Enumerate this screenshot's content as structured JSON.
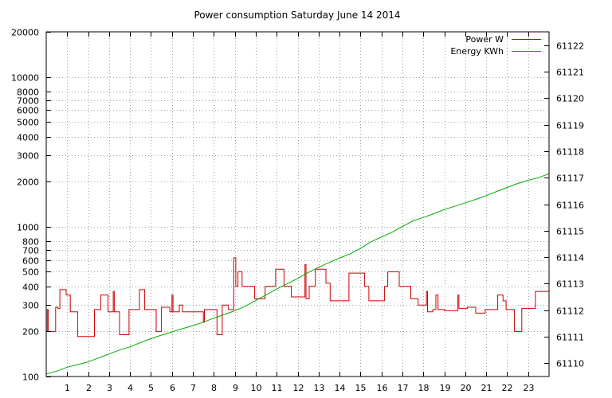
{
  "chart_data": {
    "type": "line",
    "title": "Power consumption Saturday June 14 2014",
    "xlabel": "",
    "ylabel": "",
    "y2label": "",
    "grid": true,
    "legend_placement": "top-right",
    "x_ticks": [
      "1",
      "2",
      "3",
      "4",
      "5",
      "6",
      "7",
      "8",
      "9",
      "10",
      "11",
      "12",
      "13",
      "14",
      "15",
      "16",
      "17",
      "18",
      "19",
      "20",
      "21",
      "22",
      "23"
    ],
    "xlim": [
      0,
      24
    ],
    "y_scale": "log",
    "ylim": [
      100,
      20000
    ],
    "y_ticks": [
      "100",
      "200",
      "300",
      "400",
      "500",
      "600",
      "700",
      "800",
      "1000",
      "2000",
      "3000",
      "4000",
      "5000",
      "6000",
      "7000",
      "8000",
      "10000",
      "20000"
    ],
    "y2lim": [
      61109.5,
      61122.5
    ],
    "y2_ticks": [
      "61110",
      "61111",
      "61112",
      "61113",
      "61114",
      "61115",
      "61116",
      "61117",
      "61118",
      "61119",
      "61120",
      "61121",
      "61122"
    ],
    "series": [
      {
        "name": "Power W",
        "axis": "y",
        "color": "#cc0000",
        "style": "steps",
        "points": [
          [
            0.0,
            200
          ],
          [
            0.05,
            280
          ],
          [
            0.1,
            200
          ],
          [
            0.4,
            200
          ],
          [
            0.45,
            290
          ],
          [
            0.55,
            285
          ],
          [
            0.65,
            380
          ],
          [
            0.95,
            350
          ],
          [
            1.15,
            270
          ],
          [
            1.5,
            185
          ],
          [
            2.15,
            185
          ],
          [
            2.3,
            280
          ],
          [
            2.6,
            350
          ],
          [
            2.95,
            270
          ],
          [
            3.2,
            370
          ],
          [
            3.25,
            270
          ],
          [
            3.5,
            190
          ],
          [
            3.9,
            190
          ],
          [
            3.95,
            280
          ],
          [
            4.45,
            380
          ],
          [
            4.7,
            280
          ],
          [
            5.25,
            200
          ],
          [
            5.5,
            290
          ],
          [
            5.9,
            270
          ],
          [
            6.0,
            350
          ],
          [
            6.05,
            270
          ],
          [
            6.35,
            300
          ],
          [
            6.5,
            270
          ],
          [
            7.5,
            230
          ],
          [
            7.55,
            280
          ],
          [
            8.15,
            190
          ],
          [
            8.4,
            300
          ],
          [
            8.7,
            280
          ],
          [
            8.95,
            620
          ],
          [
            9.05,
            400
          ],
          [
            9.15,
            500
          ],
          [
            9.35,
            400
          ],
          [
            9.95,
            330
          ],
          [
            10.45,
            400
          ],
          [
            10.95,
            520
          ],
          [
            11.35,
            400
          ],
          [
            11.7,
            340
          ],
          [
            12.35,
            560
          ],
          [
            12.4,
            330
          ],
          [
            12.55,
            400
          ],
          [
            12.85,
            520
          ],
          [
            13.35,
            420
          ],
          [
            13.55,
            320
          ],
          [
            14.45,
            490
          ],
          [
            15.2,
            400
          ],
          [
            15.4,
            320
          ],
          [
            16.15,
            400
          ],
          [
            16.3,
            500
          ],
          [
            16.85,
            400
          ],
          [
            17.4,
            330
          ],
          [
            17.75,
            300
          ],
          [
            18.15,
            370
          ],
          [
            18.2,
            270
          ],
          [
            18.45,
            280
          ],
          [
            18.6,
            350
          ],
          [
            18.7,
            280
          ],
          [
            19.0,
            275
          ],
          [
            19.5,
            275
          ],
          [
            19.65,
            350
          ],
          [
            19.7,
            285
          ],
          [
            20.1,
            290
          ],
          [
            20.5,
            265
          ],
          [
            20.95,
            280
          ],
          [
            21.55,
            350
          ],
          [
            21.8,
            320
          ],
          [
            21.95,
            280
          ],
          [
            22.35,
            200
          ],
          [
            22.7,
            285
          ],
          [
            23.35,
            370
          ],
          [
            24.0,
            370
          ]
        ]
      },
      {
        "name": "Energy KWh",
        "axis": "y2",
        "color": "#00aa00",
        "style": "line",
        "points": [
          [
            0,
            61109.6
          ],
          [
            0.5,
            61109.7
          ],
          [
            1,
            61109.85
          ],
          [
            1.5,
            61109.95
          ],
          [
            2,
            61110.05
          ],
          [
            2.5,
            61110.2
          ],
          [
            3,
            61110.35
          ],
          [
            3.5,
            61110.5
          ],
          [
            4,
            61110.62
          ],
          [
            4.5,
            61110.78
          ],
          [
            5,
            61110.93
          ],
          [
            5.5,
            61111.06
          ],
          [
            6,
            61111.18
          ],
          [
            6.5,
            61111.3
          ],
          [
            7,
            61111.42
          ],
          [
            7.5,
            61111.55
          ],
          [
            8,
            61111.7
          ],
          [
            8.5,
            61111.84
          ],
          [
            9,
            61111.98
          ],
          [
            9.5,
            61112.15
          ],
          [
            10,
            61112.37
          ],
          [
            10.5,
            61112.58
          ],
          [
            11,
            61112.8
          ],
          [
            11.5,
            61113.0
          ],
          [
            12,
            61113.2
          ],
          [
            12.5,
            61113.42
          ],
          [
            13,
            61113.62
          ],
          [
            13.5,
            61113.8
          ],
          [
            14,
            61113.97
          ],
          [
            14.5,
            61114.12
          ],
          [
            15,
            61114.33
          ],
          [
            15.5,
            61114.58
          ],
          [
            16,
            61114.76
          ],
          [
            16.5,
            61114.94
          ],
          [
            17,
            61115.16
          ],
          [
            17.5,
            61115.37
          ],
          [
            18,
            61115.5
          ],
          [
            18.5,
            61115.64
          ],
          [
            19,
            61115.8
          ],
          [
            19.5,
            61115.92
          ],
          [
            20,
            61116.05
          ],
          [
            20.5,
            61116.18
          ],
          [
            21,
            61116.32
          ],
          [
            21.5,
            61116.48
          ],
          [
            22,
            61116.63
          ],
          [
            22.5,
            61116.78
          ],
          [
            23,
            61116.9
          ],
          [
            23.5,
            61117.0
          ],
          [
            24,
            61117.15
          ]
        ]
      }
    ]
  }
}
